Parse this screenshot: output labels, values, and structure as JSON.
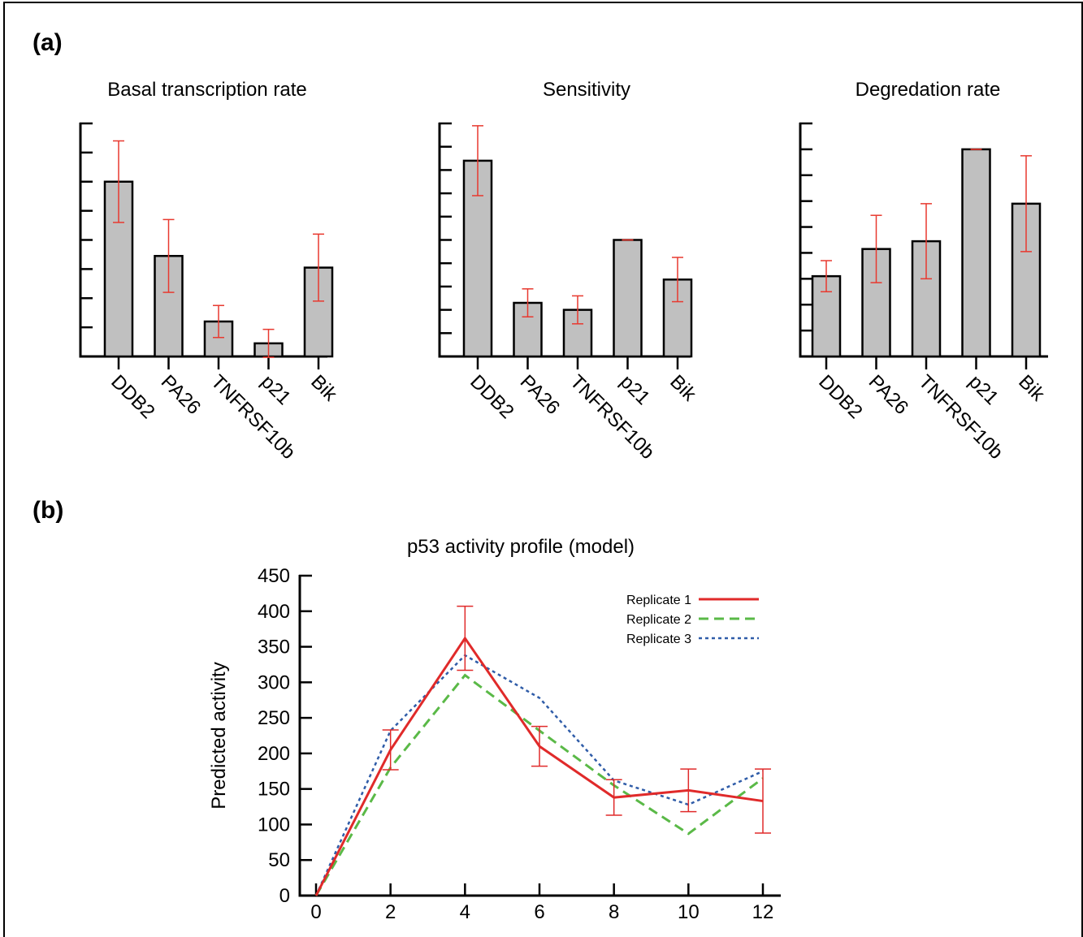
{
  "panel_labels": {
    "a": "(a)",
    "b": "(b)"
  },
  "colors": {
    "bar_fill": "#c0c0c0",
    "error_bar": "#e8392f",
    "replicate_1": "#e02a2a",
    "replicate_2": "#5ab947",
    "replicate_3": "#2f5ca8"
  },
  "chart_data": [
    {
      "type": "bar",
      "title": "Basal transcription rate",
      "categories": [
        "DDB2",
        "PA26",
        "TNFRSF10b",
        "p21",
        "Bik"
      ],
      "values": [
        6.0,
        3.45,
        1.2,
        0.45,
        3.05
      ],
      "errors": [
        1.4,
        1.25,
        0.55,
        0.48,
        1.15
      ],
      "ylim": [
        0,
        8
      ],
      "yticks": [
        0,
        1,
        2,
        3,
        4,
        5,
        6,
        7,
        8
      ],
      "ytick_labels": "hidden"
    },
    {
      "type": "bar",
      "title": "Sensitivity",
      "categories": [
        "DDB2",
        "PA26",
        "TNFRSF10b",
        "p21",
        "Bik"
      ],
      "values": [
        8.4,
        2.3,
        2.0,
        5.0,
        3.3
      ],
      "errors": [
        1.5,
        0.6,
        0.6,
        0.0,
        0.95
      ],
      "ylim": [
        0,
        10
      ],
      "yticks": [
        0,
        1,
        2,
        3,
        4,
        5,
        6,
        7,
        8,
        9,
        10
      ],
      "ytick_labels": "hidden"
    },
    {
      "type": "bar",
      "title": "Degredation rate",
      "categories": [
        "DDB2",
        "PA26",
        "TNFRSF10b",
        "p21",
        "Bik"
      ],
      "values": [
        3.1,
        4.15,
        4.45,
        8.0,
        5.9
      ],
      "errors": [
        0.6,
        1.3,
        1.45,
        0.0,
        1.85
      ],
      "ylim": [
        0,
        9
      ],
      "yticks": [
        0,
        1,
        2,
        3,
        4,
        5,
        6,
        7,
        8,
        9
      ],
      "ytick_labels": "hidden"
    },
    {
      "type": "line",
      "title": "p53 activity profile (model)",
      "xlabel": "",
      "ylabel": "Predicted activity",
      "x": [
        0,
        2,
        4,
        6,
        8,
        10,
        12
      ],
      "xlim": [
        0,
        12
      ],
      "ylim": [
        0,
        450
      ],
      "xticks": [
        0,
        2,
        4,
        6,
        8,
        10,
        12
      ],
      "yticks": [
        0,
        50,
        100,
        150,
        200,
        250,
        300,
        350,
        400,
        450
      ],
      "legend_position": "top-right",
      "series": [
        {
          "name": "Replicate 1",
          "style": "solid",
          "values": [
            0,
            205,
            362,
            210,
            138,
            148,
            133
          ],
          "errors": [
            0,
            28,
            45,
            28,
            25,
            30,
            45
          ]
        },
        {
          "name": "Replicate 2",
          "style": "dashed",
          "values": [
            0,
            180,
            310,
            232,
            155,
            87,
            165
          ]
        },
        {
          "name": "Replicate 3",
          "style": "dotted",
          "values": [
            0,
            232,
            338,
            278,
            162,
            128,
            175
          ]
        }
      ]
    }
  ]
}
